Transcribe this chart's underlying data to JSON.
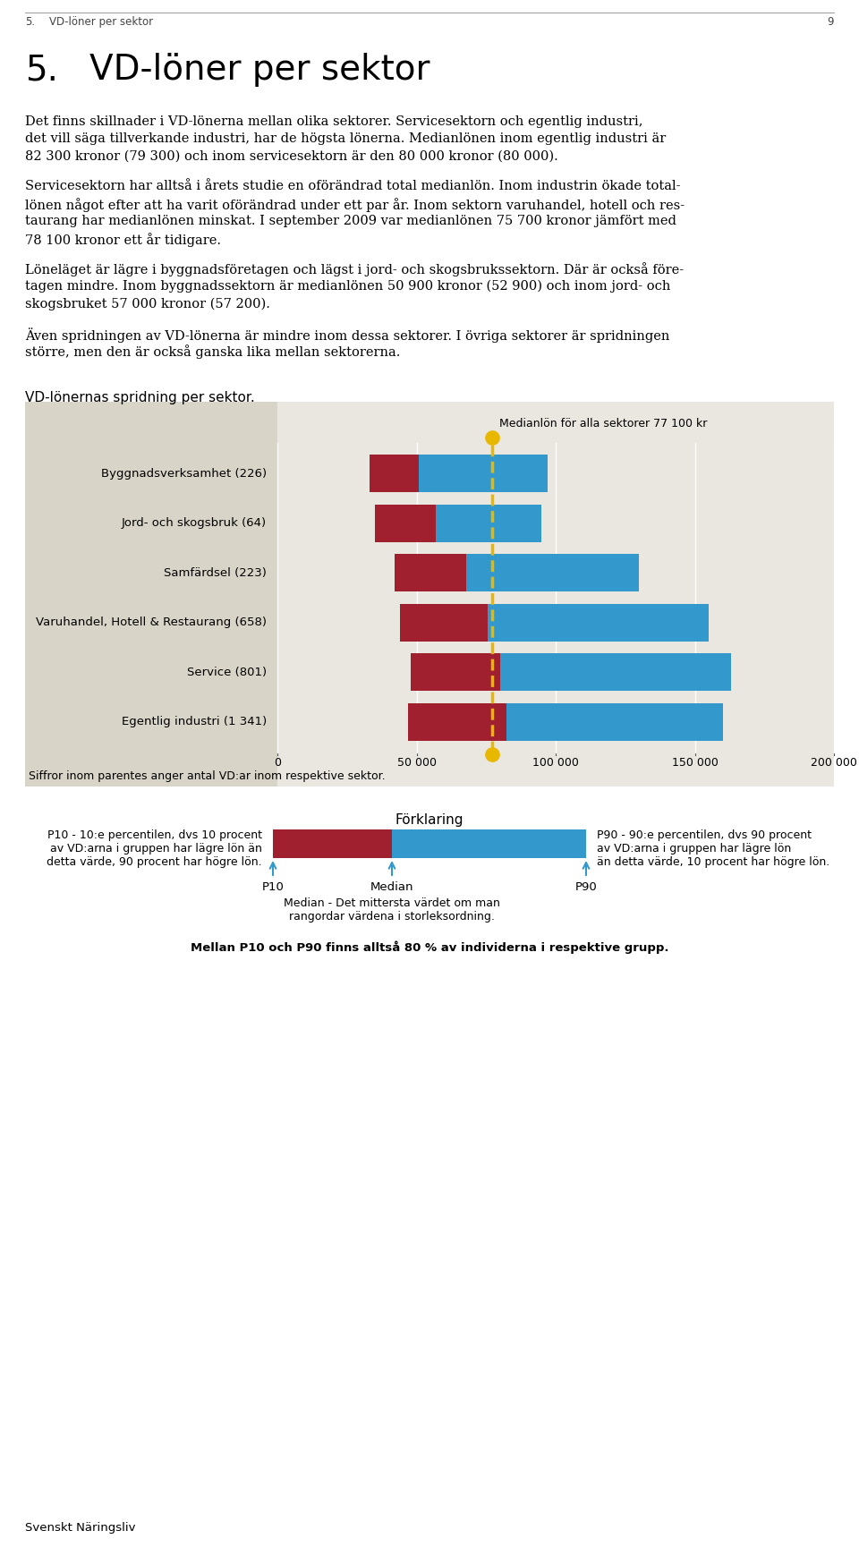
{
  "page_number": "9",
  "section_number": "5.",
  "section_title": "VD-löner per sektor",
  "body_paragraphs": [
    "Det finns skillnader i VD-lönerna mellan olika sektorer. Servicesektorn och egentlig industri, det vill säga tillverkande industri, har de högsta lönerna. Medianlönen inom egentlig industri är 82 300 kronor (79 300) och inom servicesektorn är den 80 000 kronor (80 000).",
    "Servicesektorn har alltså i årets studie en oförändrad total medianlön. Inom industrin ökade totallönen något efter att ha varit oförändrad under ett par år. Inom sektorn varuhandel, hotell och restaurang har medianlönen minskat. I september 2009 var medianlönen 75 700 kronor jämfört med 78 100 kronor ett år tidigare.",
    "Löneläget är lägre i byggnadsföretagen och lägst i jord- och skogsbrukssektorn. Där är också företagen mindre. Inom byggnadssektorn är medianlönen 50 900 kronor (52 900) och inom jord- och skogsbruket 57 000 kronor (57 200).",
    "Även spridningen av VD-lönerna är mindre inom dessa sektorer. I övriga sektorer är spridningen större, men den är också ganska lika mellan sektorerna."
  ],
  "chart_title": "VD-lönernas spridning per sektor.",
  "categories": [
    "Byggnadsverksamhet (226)",
    "Jord- och skogsbruk (64)",
    "Samfärdsel (223)",
    "Varuhandel, Hotell & Restaurang (658)",
    "Service (801)",
    "Egentlig industri (1 341)"
  ],
  "p10": [
    33000,
    35000,
    42000,
    44000,
    48000,
    47000
  ],
  "median": [
    50900,
    57000,
    68000,
    75700,
    80000,
    82300
  ],
  "p90": [
    97000,
    95000,
    130000,
    155000,
    163000,
    160000
  ],
  "overall_median": 77100,
  "x_max": 200000,
  "xticks": [
    0,
    50000,
    100000,
    150000,
    200000
  ],
  "xtick_labels": [
    "0",
    "50 000",
    "100 000",
    "150 000",
    "200 000"
  ],
  "color_red": "#A02030",
  "color_blue": "#3399CC",
  "color_yellow": "#E8B800",
  "color_bg_left": "#D9D4C8",
  "color_bg_right": "#EAE7E0",
  "footnote": "Siffror inom parentes anger antal VD:ar inom respektive sektor.",
  "legend_title": "Förklaring",
  "legend_p10_text": "P10 - 10:e percentilen, dvs 10 procent\nav VD:arna i gruppen har lägre lön än\ndetta värde, 90 procent har högre lön.",
  "legend_p90_text": "P90 - 90:e percentilen, dvs 90 procent\nav VD:arna i gruppen har lägre lön\nän detta värde, 10 procent har högre lön.",
  "legend_median_text": "Median - Det mittersta värdet om man\nrangordar värdena i storleksordning.",
  "legend_between_text": "Mellan P10 och P90 finns alltså 80 % av individerna i respektive grupp.",
  "footer_text": "Svenskt Näringsliv"
}
